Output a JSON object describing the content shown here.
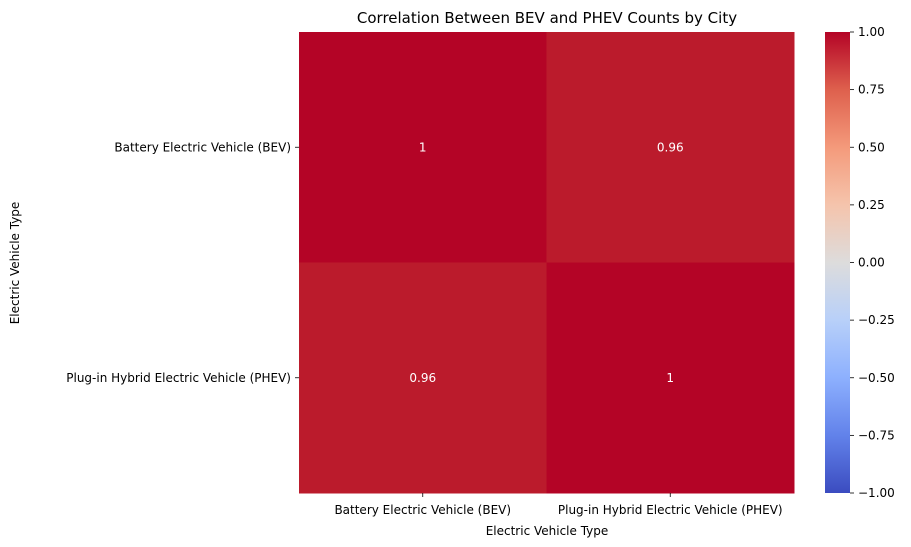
{
  "chart_data": {
    "type": "heatmap",
    "title": "Correlation Between BEV and PHEV Counts by City",
    "xlabel": "Electric Vehicle Type",
    "ylabel": "Electric Vehicle Type",
    "x_categories": [
      "Battery Electric Vehicle (BEV)",
      "Plug-in Hybrid Electric Vehicle (PHEV)"
    ],
    "y_categories": [
      "Battery Electric Vehicle (BEV)",
      "Plug-in Hybrid Electric Vehicle (PHEV)"
    ],
    "values": [
      [
        1,
        0.96
      ],
      [
        0.96,
        1
      ]
    ],
    "annotations": [
      [
        "1",
        "0.96"
      ],
      [
        "0.96",
        "1"
      ]
    ],
    "colormap": "coolwarm",
    "colorbar": {
      "vmin": -1.0,
      "vmax": 1.0,
      "ticks": [
        "1.00",
        "0.75",
        "0.50",
        "0.25",
        "0.00",
        "−0.25",
        "−0.50",
        "−0.75",
        "−1.00"
      ],
      "tick_values": [
        1.0,
        0.75,
        0.5,
        0.25,
        0.0,
        -0.25,
        -0.5,
        -0.75,
        -1.0
      ]
    },
    "cell_colors": [
      [
        "#b40426",
        "#bb1b2c"
      ],
      [
        "#bb1b2c",
        "#b40426"
      ]
    ],
    "colormap_stops": [
      "#3b4cc0",
      "#6282ea",
      "#8db0fe",
      "#b8d0f9",
      "#dddcdc",
      "#f5c4ac",
      "#f49a7b",
      "#de604d",
      "#b40426"
    ]
  }
}
